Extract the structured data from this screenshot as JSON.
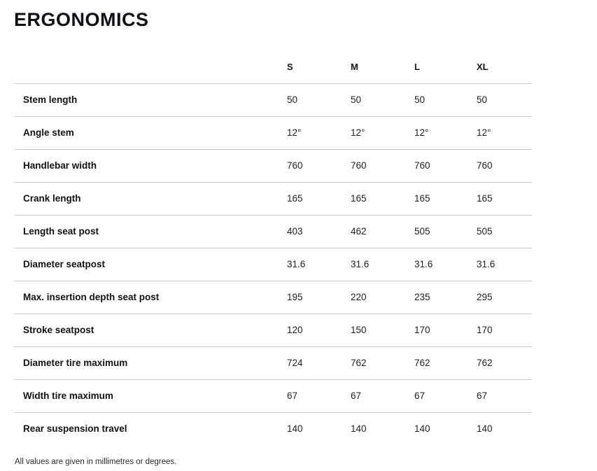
{
  "title": "ERGONOMICS",
  "table": {
    "columns": [
      "S",
      "M",
      "L",
      "XL"
    ],
    "rows": [
      {
        "label": "Stem length",
        "values": [
          "50",
          "50",
          "50",
          "50"
        ]
      },
      {
        "label": "Angle stem",
        "values": [
          "12°",
          "12°",
          "12°",
          "12°"
        ]
      },
      {
        "label": "Handlebar width",
        "values": [
          "760",
          "760",
          "760",
          "760"
        ]
      },
      {
        "label": "Crank length",
        "values": [
          "165",
          "165",
          "165",
          "165"
        ]
      },
      {
        "label": "Length seat post",
        "values": [
          "403",
          "462",
          "505",
          "505"
        ]
      },
      {
        "label": "Diameter seatpost",
        "values": [
          "31.6",
          "31.6",
          "31.6",
          "31.6"
        ]
      },
      {
        "label": "Max. insertion depth seat post",
        "values": [
          "195",
          "220",
          "235",
          "295"
        ]
      },
      {
        "label": "Stroke seatpost",
        "values": [
          "120",
          "150",
          "170",
          "170"
        ]
      },
      {
        "label": "Diameter tire maximum",
        "values": [
          "724",
          "762",
          "762",
          "762"
        ]
      },
      {
        "label": "Width tire maximum",
        "values": [
          "67",
          "67",
          "67",
          "67"
        ]
      },
      {
        "label": "Rear suspension travel",
        "values": [
          "140",
          "140",
          "140",
          "140"
        ]
      }
    ]
  },
  "footnote": "All values are given in millimetres or degrees."
}
